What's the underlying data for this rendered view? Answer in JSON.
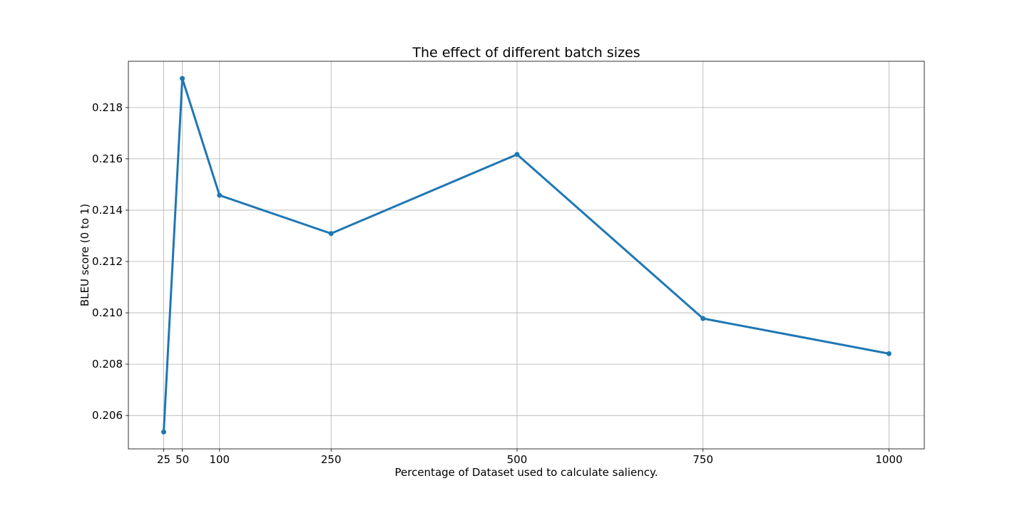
{
  "chart_data": {
    "type": "line",
    "title": "The effect of different batch sizes",
    "xlabel": "Percentage of Dataset used to calculate saliency.",
    "ylabel": "BLEU score (0 to 1)",
    "x": [
      25,
      50,
      100,
      250,
      500,
      750,
      1000
    ],
    "series": [
      {
        "values": [
          0.20536,
          0.21913,
          0.21458,
          0.21309,
          0.21617,
          0.20978,
          0.20841
        ],
        "color": "#1f77b4"
      }
    ],
    "xticks": [
      25,
      50,
      100,
      250,
      500,
      750,
      1000
    ],
    "xtick_labels": [
      "25",
      "50",
      "100",
      "250",
      "500",
      "750",
      "1000"
    ],
    "yticks": [
      0.206,
      0.208,
      0.21,
      0.212,
      0.214,
      0.216,
      0.218
    ],
    "ytick_labels": [
      "0.206",
      "0.208",
      "0.210",
      "0.212",
      "0.214",
      "0.216",
      "0.218"
    ],
    "xlim": [
      -22.5,
      1047.5
    ],
    "ylim": [
      0.2047,
      0.2198
    ],
    "grid": true,
    "legend": "none",
    "markers": true
  }
}
